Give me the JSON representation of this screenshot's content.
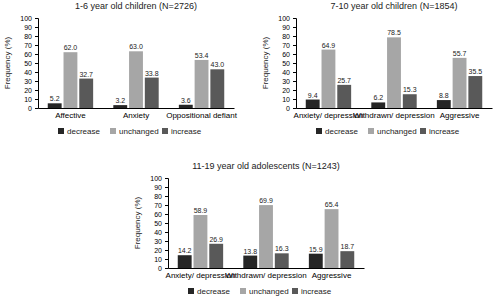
{
  "chart_data": [
    {
      "type": "bar",
      "title": "1-6 year old children (N=2726)",
      "y_label": "Frequency (%)",
      "categories": [
        "Affective",
        "Anxiety",
        "Oppositional defiant"
      ],
      "series": [
        {
          "name": "decrease",
          "color": "#262626",
          "values": [
            5.2,
            3.2,
            3.6
          ],
          "value_labels": [
            "5.2",
            "3.2",
            "3.6"
          ]
        },
        {
          "name": "unchanged",
          "color": "#a6a6a6",
          "values": [
            62.0,
            63.0,
            53.4
          ],
          "value_labels": [
            "62.0",
            "63.0",
            "53.4"
          ]
        },
        {
          "name": "increase",
          "color": "#595959",
          "values": [
            32.7,
            33.8,
            43.0
          ],
          "value_labels": [
            "32.7",
            "33.8",
            "43.0"
          ]
        }
      ],
      "ylim": [
        0,
        100
      ],
      "yticks": [
        0,
        10,
        20,
        30,
        40,
        50,
        60,
        70,
        80,
        90,
        100
      ],
      "data_labels": true,
      "legend": "bottom",
      "grid": false
    },
    {
      "type": "bar",
      "title": "7-10 year old children (N=1854)",
      "y_label": "Frequency (%)",
      "categories": [
        "Anxiety/ depression",
        "Withdrawn/ depression",
        "Aggressive"
      ],
      "series": [
        {
          "name": "decrease",
          "color": "#262626",
          "values": [
            9.4,
            6.2,
            8.8
          ],
          "value_labels": [
            "9.4",
            "6.2",
            "8.8"
          ]
        },
        {
          "name": "unchanged",
          "color": "#a6a6a6",
          "values": [
            64.9,
            78.5,
            55.7
          ],
          "value_labels": [
            "64.9",
            "78.5",
            "55.7"
          ]
        },
        {
          "name": "increase",
          "color": "#595959",
          "values": [
            25.7,
            15.3,
            35.5
          ],
          "value_labels": [
            "25.7",
            "15.3",
            "35.5"
          ]
        }
      ],
      "ylim": [
        0,
        100
      ],
      "yticks": [
        0,
        10,
        20,
        30,
        40,
        50,
        60,
        70,
        80,
        90,
        100
      ],
      "data_labels": true,
      "legend": "bottom",
      "grid": false
    },
    {
      "type": "bar",
      "title": "11-19 year old adolescents (N=1243)",
      "y_label": "Frequency (%)",
      "categories": [
        "Anxiety/ depression",
        "Withdrawn/ depression",
        "Aggressive"
      ],
      "series": [
        {
          "name": "decrease",
          "color": "#262626",
          "values": [
            14.2,
            13.8,
            15.9
          ],
          "value_labels": [
            "14.2",
            "13.8",
            "15.9"
          ]
        },
        {
          "name": "unchanged",
          "color": "#a6a6a6",
          "values": [
            58.9,
            69.9,
            65.4
          ],
          "value_labels": [
            "58.9",
            "69.9",
            "65.4"
          ]
        },
        {
          "name": "increase",
          "color": "#595959",
          "values": [
            26.9,
            16.3,
            18.7
          ],
          "value_labels": [
            "26.9",
            "16.3",
            "18.7"
          ]
        }
      ],
      "ylim": [
        0,
        100
      ],
      "yticks": [
        0,
        10,
        20,
        30,
        40,
        50,
        60,
        70,
        80,
        90,
        100
      ],
      "data_labels": true,
      "legend": "bottom",
      "grid": false
    }
  ]
}
